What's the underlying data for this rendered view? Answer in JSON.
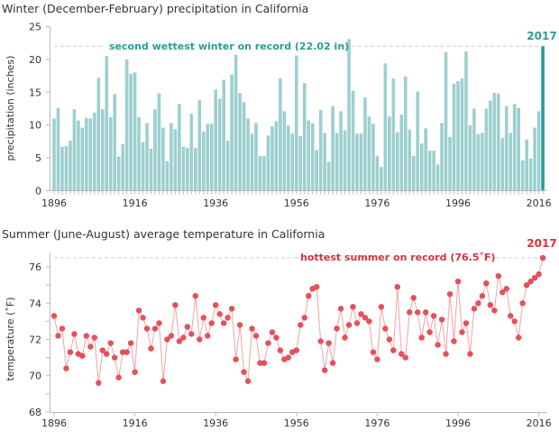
{
  "chart_data": [
    {
      "type": "bar",
      "title": "Winter (December-February) precipitation in California",
      "xlabel": "",
      "ylabel": "precipitation (inches)",
      "ylim": [
        0,
        25
      ],
      "yticks": [
        0,
        5,
        10,
        15,
        20,
        25
      ],
      "xticks": [
        1896,
        1916,
        1936,
        1956,
        1976,
        1996,
        2016
      ],
      "grid": false,
      "colors": {
        "bar": "#9dcfcf",
        "highlight": "#2a9d94",
        "annotation": "#2a9d94",
        "reference_line": "#cccccc"
      },
      "annotation": {
        "text": "second wettest winter on record (22.02 in)",
        "value": 22.02,
        "highlight_label": "2017"
      },
      "x_start": 1896,
      "values": [
        11.0,
        12.6,
        6.7,
        6.8,
        7.6,
        12.4,
        10.7,
        9.6,
        11.1,
        11.0,
        11.9,
        17.2,
        12.4,
        20.5,
        11.2,
        14.7,
        5.2,
        7.1,
        20.0,
        17.8,
        18.0,
        11.2,
        7.4,
        10.3,
        6.4,
        12.4,
        14.8,
        9.6,
        4.5,
        10.3,
        9.4,
        13.2,
        6.7,
        6.5,
        11.7,
        6.5,
        13.8,
        9.0,
        10.2,
        10.2,
        15.4,
        14.0,
        16.9,
        7.6,
        17.7,
        20.7,
        14.9,
        13.5,
        11.0,
        8.7,
        10.3,
        5.3,
        5.3,
        8.4,
        9.8,
        10.6,
        17.1,
        12.1,
        9.9,
        8.7,
        20.6,
        8.3,
        16.4,
        10.7,
        10.3,
        6.2,
        12.3,
        8.8,
        4.4,
        12.9,
        8.8,
        12.1,
        9.2,
        23.1,
        15.2,
        8.7,
        8.7,
        14.2,
        11.3,
        10.2,
        5.3,
        3.6,
        19.4,
        11.3,
        17.1,
        8.9,
        11.6,
        17.4,
        9.3,
        5.3,
        15.1,
        7.2,
        9.5,
        6.1,
        6.1,
        4.0,
        10.3,
        21.1,
        8.2,
        16.3,
        16.7,
        17.1,
        21.2,
        10.0,
        12.5,
        8.6,
        8.8,
        12.5,
        13.7,
        14.9,
        14.8,
        8.0,
        12.9,
        8.8,
        13.2,
        12.6,
        4.6,
        7.8,
        4.9,
        9.6,
        12.1,
        22.02
      ]
    },
    {
      "type": "line",
      "title": "Summer (June-August) average temperature in California",
      "xlabel": "",
      "ylabel": "temperature (˚F)",
      "ylim": [
        68,
        76.8
      ],
      "yticks": [
        68,
        70,
        72,
        74,
        76
      ],
      "xticks": [
        1896,
        1916,
        1936,
        1956,
        1976,
        1996,
        2016
      ],
      "grid": false,
      "colors": {
        "line": "#f5a3a6",
        "marker": "#e8505b",
        "annotation": "#d9303c",
        "reference_line": "#cccccc"
      },
      "annotation": {
        "text": "hottest summer on record (76.5˚F)",
        "value": 76.5,
        "highlight_label": "2017"
      },
      "x_start": 1896,
      "values": [
        73.3,
        72.2,
        72.6,
        70.4,
        71.3,
        72.3,
        71.2,
        71.1,
        72.2,
        71.6,
        72.1,
        69.6,
        71.4,
        71.2,
        71.8,
        71.0,
        69.9,
        71.3,
        71.3,
        71.8,
        70.2,
        73.6,
        73.2,
        72.6,
        71.5,
        72.6,
        72.9,
        69.7,
        72.0,
        72.2,
        73.9,
        71.9,
        72.1,
        72.7,
        72.3,
        74.4,
        72.0,
        73.2,
        72.2,
        72.9,
        73.9,
        73.4,
        72.9,
        73.2,
        73.7,
        70.9,
        72.8,
        70.2,
        69.7,
        72.6,
        72.2,
        70.7,
        70.7,
        71.8,
        72.4,
        72.1,
        71.4,
        70.9,
        71.0,
        71.3,
        71.4,
        72.8,
        73.2,
        74.4,
        74.8,
        74.9,
        71.9,
        70.3,
        71.8,
        70.7,
        72.6,
        73.7,
        72.1,
        72.8,
        73.8,
        72.9,
        73.4,
        73.2,
        73.0,
        71.3,
        70.9,
        73.8,
        72.6,
        72.0,
        71.4,
        74.9,
        71.2,
        71.0,
        73.5,
        74.3,
        73.5,
        72.1,
        73.5,
        72.4,
        73.3,
        71.7,
        73.1,
        71.2,
        74.5,
        71.9,
        75.2,
        72.4,
        72.9,
        71.2,
        73.7,
        74.0,
        74.4,
        75.1,
        73.9,
        73.6,
        75.5,
        74.6,
        74.8,
        73.3,
        73.0,
        72.1,
        74.0,
        75.0,
        75.2,
        75.4,
        75.6,
        76.5
      ]
    }
  ]
}
